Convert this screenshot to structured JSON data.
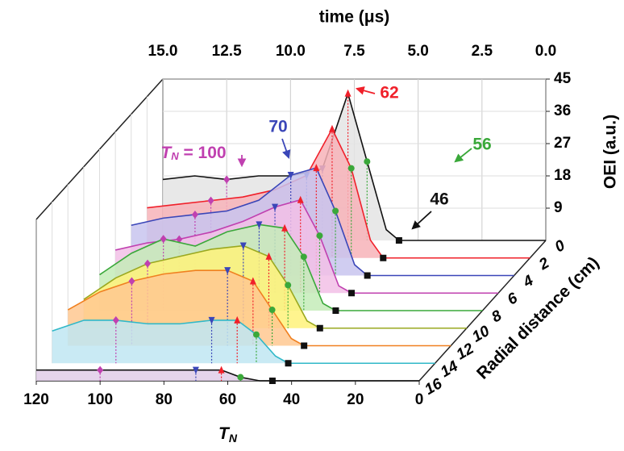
{
  "chart_data": {
    "type": "waterfall",
    "x_title_parts": [
      "T",
      "N"
    ],
    "x2_title": "time (μs)",
    "y_title": "OEI (a.u.)",
    "z_title": "Radial distance (cm)",
    "x": [
      120,
      110,
      100,
      90,
      80,
      70,
      62,
      56,
      50,
      46,
      40,
      20,
      0
    ],
    "xlim": [
      120,
      0
    ],
    "xticks": [
      120,
      100,
      80,
      60,
      40,
      20,
      0
    ],
    "x2lim": [
      15,
      0
    ],
    "x2ticks": [
      {
        "value": 15,
        "label": "15.0"
      },
      {
        "value": 12.5,
        "label": "12.5"
      },
      {
        "value": 10,
        "label": "10.0"
      },
      {
        "value": 7.5,
        "label": "7.5"
      },
      {
        "value": 5,
        "label": "5.0"
      },
      {
        "value": 2.5,
        "label": "2.5"
      },
      {
        "value": 0,
        "label": "0.0"
      }
    ],
    "ylim": [
      0,
      45
    ],
    "yticks": [
      9,
      18,
      27,
      36,
      45
    ],
    "zlim": [
      0,
      16
    ],
    "grid": true,
    "series": [
      {
        "name": "0",
        "color": "#111111",
        "fill": "#e4e4e4",
        "values": [
          17,
          18,
          17,
          18,
          18,
          20,
          41,
          22,
          3,
          0,
          0,
          0,
          0
        ]
      },
      {
        "name": "2",
        "color": "#f0202a",
        "fill": "#f7b3b8",
        "values": [
          14,
          15,
          16,
          17,
          19,
          23,
          36,
          25,
          5,
          0,
          0,
          0,
          0
        ]
      },
      {
        "name": "4",
        "color": "#3a46b8",
        "fill": "#c8c4ee",
        "values": [
          14,
          16,
          17,
          18,
          21,
          28,
          30,
          18,
          3,
          0,
          0,
          0,
          0
        ]
      },
      {
        "name": "6",
        "color": "#c040b0",
        "fill": "#f2c0e6",
        "values": [
          12,
          14,
          15,
          17,
          20,
          24,
          26,
          16,
          2,
          0,
          0,
          0,
          0
        ]
      },
      {
        "name": "8",
        "color": "#3aa83a",
        "fill": "#c4ecb8",
        "values": [
          10,
          16,
          20,
          18,
          22,
          24,
          23,
          15,
          2,
          0,
          0,
          0,
          0
        ]
      },
      {
        "name": "10",
        "color": "#9aa820",
        "fill": "#fff27a",
        "values": [
          8,
          14,
          18,
          20,
          22,
          23,
          20,
          12,
          2,
          0,
          0,
          0,
          0
        ]
      },
      {
        "name": "12",
        "color": "#f08020",
        "fill": "#ffc890",
        "values": [
          10,
          15,
          18,
          20,
          21,
          21,
          18,
          10,
          2,
          0,
          0,
          0,
          0
        ]
      },
      {
        "name": "14",
        "color": "#30b8c8",
        "fill": "#bfe6f2",
        "values": [
          9,
          12,
          12,
          11,
          11,
          12,
          12,
          8,
          2,
          0,
          0,
          0,
          0
        ]
      },
      {
        "name": "16",
        "color": "#111111",
        "fill": "#e0cce8",
        "values": [
          3,
          3,
          3,
          3,
          3,
          3,
          3,
          1,
          0,
          0,
          0,
          0,
          0
        ]
      }
    ],
    "markers": [
      {
        "value": 100,
        "label": "100",
        "label_parts": [
          "T",
          "N",
          " = 100"
        ],
        "shape": "diamond",
        "color": "#c040b0"
      },
      {
        "value": 70,
        "label": "70",
        "shape": "triangle-down",
        "color": "#3a46b8"
      },
      {
        "value": 62,
        "label": "62",
        "shape": "triangle",
        "color": "#f0202a"
      },
      {
        "value": 56,
        "label": "56",
        "shape": "circle",
        "color": "#3aa83a"
      },
      {
        "value": 46,
        "label": "46",
        "shape": "square",
        "color": "#111111"
      }
    ]
  }
}
